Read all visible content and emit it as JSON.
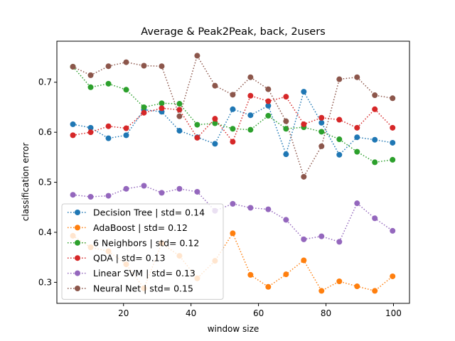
{
  "chart_data": {
    "type": "line",
    "title": "Average & Peak2Peak, back, 2users",
    "xlabel": "window size",
    "ylabel": "classification error",
    "xlim": [
      0.25,
      104.75
    ],
    "ylim": [
      0.258,
      0.782
    ],
    "xticks": [
      20,
      40,
      60,
      80,
      100
    ],
    "yticks": [
      0.3,
      0.4,
      0.5,
      0.6,
      0.7
    ],
    "ytick_labels": [
      "0.3",
      "0.4",
      "0.5",
      "0.6",
      "0.7"
    ],
    "legend_position": "lower-left",
    "line_style": "dotted",
    "x": [
      5,
      10.26,
      15.53,
      20.79,
      26.05,
      31.32,
      36.58,
      41.84,
      47.11,
      52.37,
      57.63,
      62.89,
      68.16,
      73.42,
      78.68,
      83.95,
      89.21,
      94.47,
      99.74
    ],
    "series": [
      {
        "name": "Decision Tree | std= 0.14",
        "color": "#1f77b4",
        "values": [
          0.616,
          0.609,
          0.588,
          0.594,
          0.645,
          0.641,
          0.603,
          0.59,
          0.577,
          0.646,
          0.634,
          0.653,
          0.556,
          0.681,
          0.619,
          0.555,
          0.59,
          0.585,
          0.579
        ]
      },
      {
        "name": "AdaBoost | std= 0.12",
        "color": "#ff7f0e",
        "values": [
          0.393,
          0.37,
          0.362,
          0.336,
          0.288,
          0.378,
          0.353,
          0.308,
          0.343,
          0.398,
          0.315,
          0.291,
          0.316,
          0.344,
          0.283,
          0.302,
          0.292,
          0.283,
          0.312
        ]
      },
      {
        "name": "6 Neighbors | std= 0.12",
        "color": "#2ca02c",
        "values": [
          0.731,
          0.69,
          0.697,
          0.685,
          0.65,
          0.658,
          0.657,
          0.615,
          0.618,
          0.607,
          0.605,
          0.633,
          0.607,
          0.61,
          0.601,
          0.586,
          0.561,
          0.54,
          0.545
        ]
      },
      {
        "name": "QDA | std= 0.13",
        "color": "#d62728",
        "values": [
          0.594,
          0.6,
          0.612,
          0.608,
          0.639,
          0.648,
          0.645,
          0.589,
          0.627,
          0.581,
          0.673,
          0.662,
          0.671,
          0.616,
          0.629,
          0.625,
          0.609,
          0.646,
          0.609
        ]
      },
      {
        "name": "Linear SVM | std= 0.13",
        "color": "#9467bd",
        "values": [
          0.475,
          0.471,
          0.473,
          0.487,
          0.493,
          0.479,
          0.487,
          0.481,
          0.443,
          0.457,
          0.449,
          0.446,
          0.425,
          0.386,
          0.392,
          0.381,
          0.458,
          0.428,
          0.403
        ]
      },
      {
        "name": "Neural Net | std= 0.15",
        "color": "#8c564b",
        "values": [
          0.731,
          0.714,
          0.732,
          0.74,
          0.733,
          0.732,
          0.632,
          0.753,
          0.693,
          0.675,
          0.71,
          0.686,
          0.622,
          0.511,
          0.572,
          0.706,
          0.71,
          0.674,
          0.668
        ]
      }
    ]
  }
}
